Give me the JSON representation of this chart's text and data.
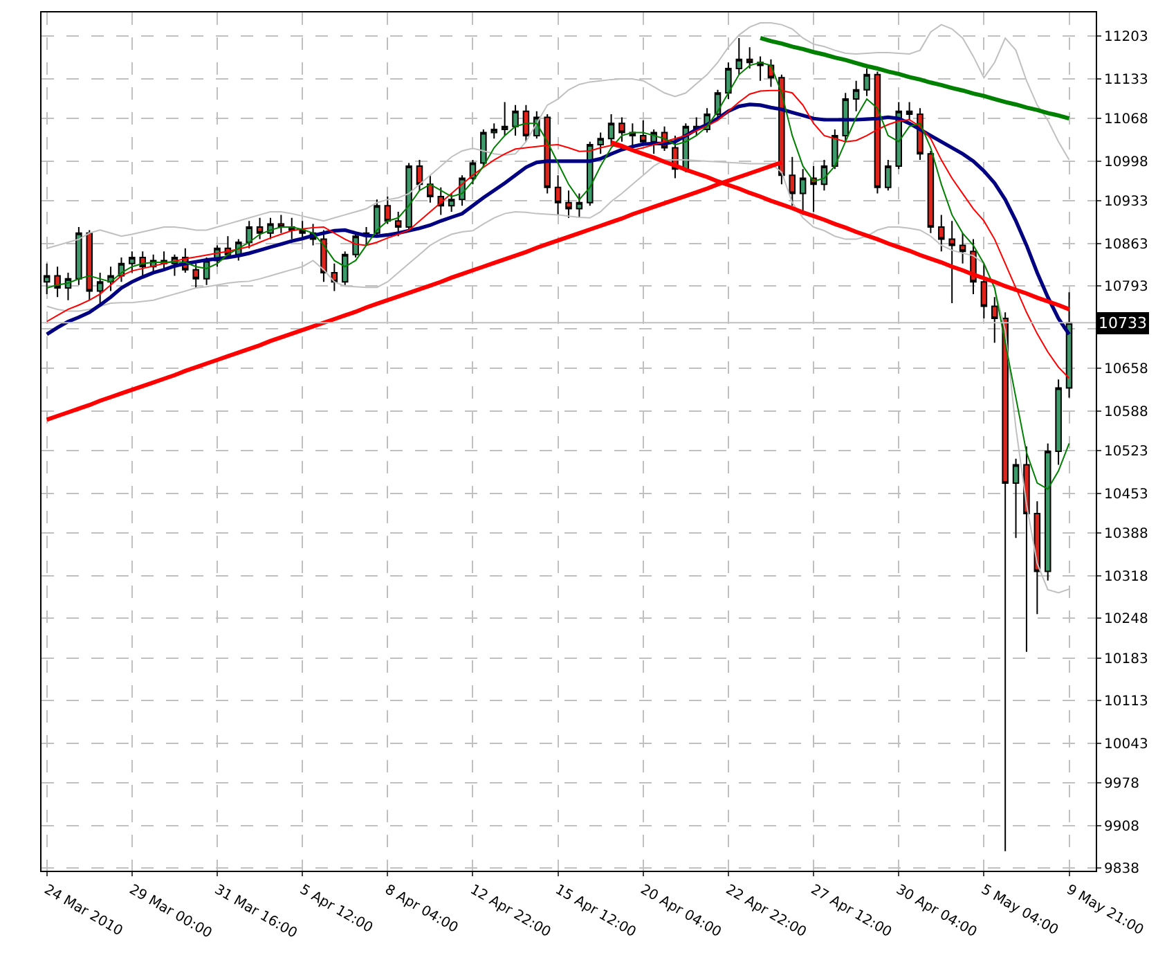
{
  "chart_data": {
    "type": "candlestick",
    "categories": [
      "24 Mar 2010",
      null,
      null,
      null,
      null,
      null,
      null,
      null,
      "29 Mar 00:00",
      null,
      null,
      null,
      null,
      null,
      null,
      null,
      "31 Mar 16:00",
      null,
      null,
      null,
      null,
      null,
      null,
      null,
      "5 Apr 12:00",
      null,
      null,
      null,
      null,
      null,
      null,
      null,
      "8 Apr 04:00",
      null,
      null,
      null,
      null,
      null,
      null,
      null,
      "12 Apr 22:00",
      null,
      null,
      null,
      null,
      null,
      null,
      null,
      "15 Apr 12:00",
      null,
      null,
      null,
      null,
      null,
      null,
      null,
      "20 Apr 04:00",
      null,
      null,
      null,
      null,
      null,
      null,
      null,
      "22 Apr 22:00",
      null,
      null,
      null,
      null,
      null,
      null,
      null,
      "27 Apr 12:00",
      null,
      null,
      null,
      null,
      null,
      null,
      null,
      "30 Apr 04:00",
      null,
      null,
      null,
      null,
      null,
      null,
      null,
      "5 May 04:00",
      null,
      null,
      null,
      null,
      null,
      null,
      null,
      "9 May 21:00"
    ],
    "ohlc": [
      [
        10800,
        10830,
        10780,
        10810
      ],
      [
        10810,
        10825,
        10775,
        10790
      ],
      [
        10790,
        10815,
        10770,
        10805
      ],
      [
        10805,
        10890,
        10795,
        10880
      ],
      [
        10880,
        10885,
        10770,
        10785
      ],
      [
        10785,
        10815,
        10760,
        10800
      ],
      [
        10800,
        10825,
        10785,
        10810
      ],
      [
        10810,
        10840,
        10800,
        10830
      ],
      [
        10830,
        10850,
        10815,
        10840
      ],
      [
        10840,
        10850,
        10810,
        10825
      ],
      [
        10825,
        10845,
        10815,
        10835
      ],
      [
        10835,
        10850,
        10820,
        10830
      ],
      [
        10830,
        10845,
        10810,
        10840
      ],
      [
        10840,
        10855,
        10815,
        10820
      ],
      [
        10820,
        10830,
        10790,
        10805
      ],
      [
        10805,
        10840,
        10795,
        10835
      ],
      [
        10835,
        10860,
        10825,
        10855
      ],
      [
        10855,
        10875,
        10840,
        10845
      ],
      [
        10845,
        10870,
        10835,
        10865
      ],
      [
        10865,
        10900,
        10855,
        10890
      ],
      [
        10890,
        10905,
        10870,
        10880
      ],
      [
        10880,
        10905,
        10870,
        10895
      ],
      [
        10895,
        10910,
        10880,
        10890
      ],
      [
        10890,
        10905,
        10870,
        10885
      ],
      [
        10885,
        10900,
        10870,
        10880
      ],
      [
        10880,
        10895,
        10860,
        10870
      ],
      [
        10870,
        10885,
        10800,
        10815
      ],
      [
        10815,
        10830,
        10785,
        10800
      ],
      [
        10800,
        10850,
        10795,
        10845
      ],
      [
        10845,
        10880,
        10840,
        10875
      ],
      [
        10875,
        10890,
        10860,
        10880
      ],
      [
        10880,
        10935,
        10875,
        10925
      ],
      [
        10925,
        10940,
        10895,
        10900
      ],
      [
        10900,
        10915,
        10875,
        10890
      ],
      [
        10890,
        10995,
        10885,
        10990
      ],
      [
        10990,
        11000,
        10950,
        10960
      ],
      [
        10960,
        10975,
        10930,
        10940
      ],
      [
        10940,
        10955,
        10910,
        10925
      ],
      [
        10925,
        10945,
        10915,
        10935
      ],
      [
        10935,
        10975,
        10925,
        10970
      ],
      [
        10970,
        11000,
        10960,
        10995
      ],
      [
        10995,
        11050,
        10990,
        11045
      ],
      [
        11045,
        11060,
        11035,
        11050
      ],
      [
        11050,
        11095,
        11040,
        11055
      ],
      [
        11055,
        11090,
        11040,
        11080
      ],
      [
        11080,
        11090,
        11030,
        11040
      ],
      [
        11040,
        11080,
        11035,
        11070
      ],
      [
        11070,
        11075,
        10945,
        10955
      ],
      [
        10955,
        10975,
        10910,
        10930
      ],
      [
        10930,
        10950,
        10905,
        10920
      ],
      [
        10920,
        10945,
        10905,
        10930
      ],
      [
        10930,
        11030,
        10925,
        11025
      ],
      [
        11025,
        11045,
        11010,
        11035
      ],
      [
        11035,
        11075,
        11025,
        11060
      ],
      [
        11060,
        11070,
        11030,
        11045
      ],
      [
        11045,
        11060,
        11020,
        11040
      ],
      [
        11040,
        11065,
        11025,
        11030
      ],
      [
        11030,
        11050,
        11010,
        11045
      ],
      [
        11045,
        11055,
        11015,
        11020
      ],
      [
        11020,
        11040,
        10970,
        10985
      ],
      [
        10985,
        11060,
        10980,
        11055
      ],
      [
        11055,
        11070,
        11040,
        11050
      ],
      [
        11050,
        11085,
        11045,
        11075
      ],
      [
        11075,
        11115,
        11065,
        11110
      ],
      [
        11110,
        11160,
        11100,
        11150
      ],
      [
        11150,
        11200,
        11140,
        11165
      ],
      [
        11165,
        11185,
        11150,
        11160
      ],
      [
        11160,
        11170,
        11130,
        11155
      ],
      [
        11155,
        11165,
        11120,
        11135
      ],
      [
        11135,
        11140,
        10960,
        10975
      ],
      [
        10975,
        11005,
        10925,
        10945
      ],
      [
        10945,
        10985,
        10910,
        10970
      ],
      [
        10970,
        10990,
        10915,
        10960
      ],
      [
        10960,
        11000,
        10950,
        10990
      ],
      [
        10990,
        11050,
        10985,
        11040
      ],
      [
        11040,
        11110,
        11030,
        11100
      ],
      [
        11100,
        11130,
        11080,
        11115
      ],
      [
        11115,
        11150,
        11105,
        11140
      ],
      [
        11140,
        11145,
        10945,
        10955
      ],
      [
        10955,
        11000,
        10950,
        10990
      ],
      [
        10990,
        11095,
        10985,
        11080
      ],
      [
        11080,
        11095,
        11065,
        11075
      ],
      [
        11075,
        11085,
        11000,
        11010
      ],
      [
        11010,
        11015,
        10880,
        10890
      ],
      [
        10890,
        10910,
        10850,
        10870
      ],
      [
        10870,
        10900,
        10765,
        10860
      ],
      [
        10860,
        10880,
        10830,
        10850
      ],
      [
        10850,
        10870,
        10780,
        10800
      ],
      [
        10800,
        10830,
        10740,
        10760
      ],
      [
        10760,
        10775,
        10700,
        10740
      ],
      [
        10740,
        10750,
        9866,
        10470
      ],
      [
        10470,
        10510,
        10380,
        10500
      ],
      [
        10500,
        10530,
        10193,
        10420
      ],
      [
        10420,
        10440,
        10255,
        10325
      ],
      [
        10325,
        10535,
        10310,
        10522
      ],
      [
        10522,
        10640,
        10500,
        10626
      ],
      [
        10626,
        10783,
        10610,
        10733
      ]
    ],
    "series": [
      {
        "type": "line",
        "color": "#c0c0c0",
        "values": [
          10855,
          10860,
          10865,
          10870,
          10880,
          10885,
          10880,
          10875,
          10878,
          10882,
          10886,
          10890,
          10890,
          10888,
          10885,
          10885,
          10890,
          10895,
          10900,
          10905,
          10910,
          10915,
          10915,
          10912,
          10908,
          10904,
          10900,
          10905,
          10910,
          10915,
          10920,
          10930,
          10935,
          10938,
          10945,
          10960,
          10975,
          10990,
          11005,
          11015,
          11019,
          11015,
          11010,
          11008,
          11010,
          11030,
          11060,
          11090,
          11100,
          11115,
          11124,
          11128,
          11130,
          11132,
          11133,
          11133,
          11130,
          11120,
          11110,
          11104,
          11110,
          11125,
          11140,
          11160,
          11185,
          11205,
          11218,
          11225,
          11225,
          11222,
          11215,
          11200,
          11190,
          11186,
          11180,
          11175,
          11174,
          11175,
          11176,
          11176,
          11175,
          11174,
          11180,
          11210,
          11222,
          11215,
          11200,
          11170,
          11135,
          11160,
          11200,
          11180,
          11130,
          11090,
          11065,
          11030,
          11000
        ]
      },
      {
        "type": "line",
        "color": "#c0c0c0",
        "values": [
          10760,
          10755,
          10752,
          10752,
          10755,
          10760,
          10765,
          10766,
          10766,
          10768,
          10770,
          10775,
          10780,
          10785,
          10790,
          10792,
          10795,
          10798,
          10800,
          10801,
          10805,
          10810,
          10815,
          10820,
          10825,
          10835,
          10820,
          10800,
          10793,
          10792,
          10791,
          10791,
          10800,
          10815,
          10830,
          10845,
          10860,
          10870,
          10878,
          10882,
          10884,
          10895,
          10905,
          10912,
          10915,
          10914,
          10912,
          10911,
          10910,
          10908,
          10906,
          10905,
          10915,
          10932,
          10945,
          10960,
          10975,
          10990,
          11000,
          11000,
          11000,
          10999,
          10998,
          10997,
          10996,
          10995,
          10994,
          10994,
          10994,
          10980,
          10930,
          10905,
          10890,
          10884,
          10875,
          10870,
          10870,
          10875,
          10885,
          10890,
          10890,
          10888,
          10885,
          10875,
          10860,
          10852,
          10847,
          10843,
          10830,
          10790,
          10720,
          10560,
          10435,
          10338,
          10295,
          10290,
          10296
        ]
      },
      {
        "type": "line",
        "color": "#000080",
        "values": [
          10714,
          10725,
          10735,
          10742,
          10750,
          10762,
          10775,
          10790,
          10800,
          10808,
          10815,
          10820,
          10826,
          10830,
          10833,
          10836,
          10838,
          10840,
          10843,
          10847,
          10852,
          10857,
          10862,
          10867,
          10871,
          10876,
          10880,
          10884,
          10885,
          10880,
          10876,
          10875,
          10877,
          10880,
          10884,
          10888,
          10893,
          10900,
          10906,
          10912,
          10925,
          10938,
          10950,
          10962,
          10975,
          10988,
          10996,
          10998,
          10998,
          10998,
          10998,
          10998,
          11002,
          11010,
          11017,
          11022,
          11026,
          11027,
          11027,
          11030,
          11040,
          11050,
          11058,
          11068,
          11080,
          11088,
          11091,
          11090,
          11086,
          11083,
          11078,
          11073,
          11068,
          11066,
          11066,
          11066,
          11066,
          11067,
          11068,
          11070,
          11068,
          11060,
          11050,
          11040,
          11030,
          11020,
          11010,
          10998,
          10982,
          10962,
          10935,
          10900,
          10860,
          10815,
          10775,
          10740,
          10714
        ]
      },
      {
        "type": "line",
        "color": "#ff0000",
        "values": [
          10735,
          10745,
          10755,
          10762,
          10770,
          10780,
          10795,
          10810,
          10818,
          10822,
          10826,
          10830,
          10834,
          10838,
          10841,
          10844,
          10847,
          10850,
          10854,
          10858,
          10865,
          10872,
          10878,
          10884,
          10887,
          10889,
          10890,
          10880,
          10870,
          10862,
          10860,
          10865,
          10872,
          10878,
          10885,
          10900,
          10915,
          10930,
          10945,
          10960,
          10975,
          10988,
          11000,
          11010,
          11018,
          11020,
          11022,
          11024,
          11025,
          11020,
          11014,
          11015,
          11020,
          11024,
          11020,
          11016,
          11020,
          11025,
          11030,
          11035,
          11040,
          11048,
          11056,
          11065,
          11080,
          11095,
          11108,
          11113,
          11114,
          11114,
          11110,
          11090,
          11060,
          11040,
          11035,
          11030,
          11032,
          11040,
          11050,
          11058,
          11064,
          11066,
          11055,
          11035,
          11000,
          10970,
          10945,
          10920,
          10900,
          10870,
          10830,
          10790,
          10750,
          10715,
          10685,
          10660,
          10642
        ]
      },
      {
        "type": "line",
        "color": "#008000",
        "values": [
          10790,
          10795,
          10798,
          10805,
          10810,
          10805,
          10800,
          10815,
          10825,
          10830,
          10832,
          10832,
          10833,
          10832,
          10825,
          10822,
          10830,
          10845,
          10855,
          10865,
          10878,
          10885,
          10890,
          10890,
          10886,
          10880,
          10860,
          10835,
          10825,
          10835,
          10860,
          10885,
          10900,
          10905,
          10925,
          10950,
          10960,
          10950,
          10940,
          10945,
          10965,
          10990,
          11020,
          11040,
          11055,
          11060,
          11060,
          11030,
          10995,
          10960,
          10935,
          10955,
          10990,
          11020,
          11040,
          11045,
          11045,
          11040,
          11035,
          11025,
          11030,
          11040,
          11055,
          11080,
          11110,
          11140,
          11155,
          11160,
          11155,
          11110,
          11040,
          10990,
          10965,
          10970,
          10990,
          11030,
          11070,
          11100,
          11085,
          11040,
          11030,
          11055,
          11060,
          11020,
          10960,
          10910,
          10880,
          10860,
          10830,
          10790,
          10700,
          10610,
          10520,
          10470,
          10460,
          10490,
          10535
        ]
      },
      {
        "type": "line",
        "color": "#ff0000",
        "values": [
          10574,
          10580,
          10586,
          10592,
          10598,
          10605,
          10611,
          10617,
          10623,
          10629,
          10635,
          10641,
          10647,
          10654,
          10660,
          10666,
          10672,
          10678,
          10684,
          10690,
          10696,
          10703,
          10709,
          10715,
          10721,
          10727,
          10733,
          10739,
          10745,
          10751,
          10758,
          10764,
          10770,
          10776,
          10782,
          10788,
          10794,
          10800,
          10807,
          10813,
          10819,
          10825,
          10831,
          10837,
          10843,
          10849,
          10856,
          10862,
          10868,
          10874,
          10880,
          10886,
          10892,
          10898,
          10904,
          10911,
          10917,
          10923,
          10929,
          10935,
          10941,
          10947,
          10953,
          10960,
          10966,
          10972,
          10978,
          10984,
          10990,
          10996,
          null,
          null,
          null,
          null,
          null,
          null,
          null,
          null,
          null,
          null,
          null,
          null,
          null,
          null,
          null,
          null,
          null,
          null,
          null,
          null,
          null,
          null,
          null,
          null,
          null,
          null,
          null
        ]
      },
      {
        "type": "line",
        "color": "#ff0000",
        "values": [
          null,
          null,
          null,
          null,
          null,
          null,
          null,
          null,
          null,
          null,
          null,
          null,
          null,
          null,
          null,
          null,
          null,
          null,
          null,
          null,
          null,
          null,
          null,
          null,
          null,
          null,
          null,
          null,
          null,
          null,
          null,
          null,
          null,
          null,
          null,
          null,
          null,
          null,
          null,
          null,
          null,
          null,
          null,
          null,
          null,
          null,
          null,
          null,
          null,
          null,
          null,
          null,
          null,
          11029,
          11023,
          11016,
          11010,
          11004,
          10997,
          10991,
          10984,
          10978,
          10972,
          10965,
          10959,
          10953,
          10946,
          10940,
          10933,
          10927,
          10921,
          10914,
          10908,
          10902,
          10895,
          10889,
          10882,
          10876,
          10870,
          10863,
          10857,
          10851,
          10844,
          10838,
          10832,
          10825,
          10819,
          10812,
          10806,
          10800,
          10793,
          10787,
          10781,
          10774,
          10768,
          10762,
          10755
        ]
      },
      {
        "type": "line",
        "color": "#008000",
        "values": [
          null,
          null,
          null,
          null,
          null,
          null,
          null,
          null,
          null,
          null,
          null,
          null,
          null,
          null,
          null,
          null,
          null,
          null,
          null,
          null,
          null,
          null,
          null,
          null,
          null,
          null,
          null,
          null,
          null,
          null,
          null,
          null,
          null,
          null,
          null,
          null,
          null,
          null,
          null,
          null,
          null,
          null,
          null,
          null,
          null,
          null,
          null,
          null,
          null,
          null,
          null,
          null,
          null,
          null,
          null,
          null,
          null,
          null,
          null,
          null,
          null,
          null,
          null,
          null,
          null,
          null,
          null,
          11200,
          11195,
          11191,
          11186,
          11182,
          11177,
          11173,
          11168,
          11164,
          11159,
          11154,
          11150,
          11145,
          11141,
          11136,
          11132,
          11127,
          11123,
          11118,
          11114,
          11109,
          11105,
          11100,
          11095,
          11091,
          11086,
          11082,
          11077,
          11073,
          11068
        ]
      }
    ],
    "ylim": [
      9834,
      11242
    ],
    "yticks": [
      9838,
      9908,
      9978,
      10043,
      10113,
      10183,
      10248,
      10318,
      10388,
      10453,
      10523,
      10588,
      10658,
      {
        "value": 10723,
        "label": null
      },
      10793,
      10863,
      10933,
      10998,
      11068,
      11133,
      11203
    ],
    "ref_lines": [
      {
        "axis": "y",
        "value": 10733,
        "label": "10733",
        "color": "#c0c0c0"
      }
    ],
    "grid": true
  }
}
